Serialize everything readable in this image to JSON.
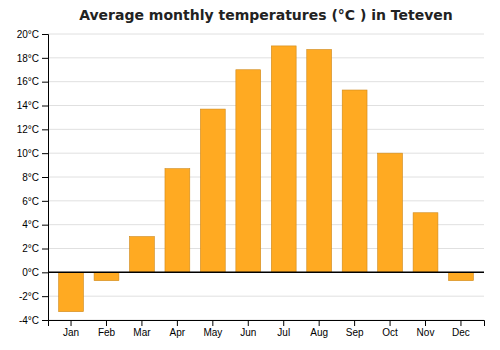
{
  "chart_data": {
    "type": "bar",
    "title": "Average monthly temperatures (°C ) in Teteven",
    "categories": [
      "Jan",
      "Feb",
      "Mar",
      "Apr",
      "May",
      "Jun",
      "Jul",
      "Aug",
      "Sep",
      "Oct",
      "Nov",
      "Dec"
    ],
    "values": [
      -3.3,
      -0.7,
      3.0,
      8.7,
      13.7,
      17.0,
      19.0,
      18.7,
      15.3,
      10.0,
      5.0,
      -0.7
    ],
    "color": "#FFAA22",
    "ylim": [
      -4,
      20
    ],
    "yticks": [
      {
        "value": -4,
        "label": "-4°C"
      },
      {
        "value": -2,
        "label": "-2°C"
      },
      {
        "value": 0,
        "label": "0°C"
      },
      {
        "value": 2,
        "label": "2°C"
      },
      {
        "value": 4,
        "label": "4°C"
      },
      {
        "value": 6,
        "label": "6°C"
      },
      {
        "value": 8,
        "label": "8°C"
      },
      {
        "value": 10,
        "label": "10°C"
      },
      {
        "value": 12,
        "label": "12°C"
      },
      {
        "value": 14,
        "label": "14°C"
      },
      {
        "value": 16,
        "label": "16°C"
      },
      {
        "value": 18,
        "label": "18°C"
      },
      {
        "value": 20,
        "label": "20°C"
      }
    ],
    "grid": true
  }
}
